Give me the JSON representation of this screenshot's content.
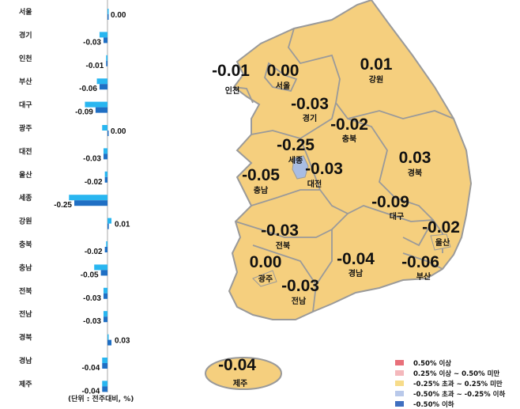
{
  "chart_data": [
    {
      "type": "bar",
      "orientation": "horizontal",
      "categories": [
        "서울",
        "경기",
        "인천",
        "부산",
        "대구",
        "광주",
        "대전",
        "울산",
        "세종",
        "강원",
        "충북",
        "충남",
        "전북",
        "전남",
        "경북",
        "경남",
        "제주"
      ],
      "series": [
        {
          "color": "#29b6f0",
          "values": [
            0.0,
            -0.06,
            -0.01,
            -0.08,
            -0.17,
            -0.04,
            -0.03,
            -0.02,
            -0.29,
            0.03,
            -0.01,
            -0.1,
            -0.03,
            -0.03,
            0.0,
            -0.04,
            -0.04
          ]
        },
        {
          "color": "#1f6fc4",
          "values": [
            0.0,
            -0.03,
            -0.01,
            -0.06,
            -0.09,
            0.0,
            -0.03,
            -0.02,
            -0.25,
            0.01,
            -0.02,
            -0.05,
            -0.03,
            -0.03,
            0.03,
            -0.04,
            -0.04
          ]
        }
      ],
      "value_labels": [
        "0.00",
        "-0.03",
        "-0.01",
        "-0.06",
        "-0.09",
        "0.00",
        "-0.03",
        "-0.02",
        "-0.25",
        "0.01",
        "-0.02",
        "-0.05",
        "-0.03",
        "-0.03",
        "0.03",
        "-0.04",
        "-0.04"
      ],
      "unit_note": "(단위 : 전주대비, %)"
    },
    {
      "type": "map",
      "regions": [
        {
          "name": "인천",
          "value": "-0.01"
        },
        {
          "name": "서울",
          "value": "0.00"
        },
        {
          "name": "강원",
          "value": "0.01"
        },
        {
          "name": "경기",
          "value": "-0.03"
        },
        {
          "name": "충북",
          "value": "-0.02"
        },
        {
          "name": "세종",
          "value": "-0.25"
        },
        {
          "name": "대전",
          "value": "-0.03"
        },
        {
          "name": "충남",
          "value": "-0.05"
        },
        {
          "name": "경북",
          "value": "0.03"
        },
        {
          "name": "대구",
          "value": "-0.09"
        },
        {
          "name": "울산",
          "value": "-0.02"
        },
        {
          "name": "전북",
          "value": "-0.03"
        },
        {
          "name": "경남",
          "value": "-0.04"
        },
        {
          "name": "부산",
          "value": "-0.06"
        },
        {
          "name": "광주",
          "value": "0.00"
        },
        {
          "name": "전남",
          "value": "-0.03"
        },
        {
          "name": "제주",
          "value": "-0.04"
        }
      ],
      "legend": [
        {
          "label": "0.50% 이상",
          "color": "#e8707a"
        },
        {
          "label": "0.25% 이상 ~ 0.50% 미만",
          "color": "#f4b8bc"
        },
        {
          "label": "-0.25% 초과 ~ 0.25% 미만",
          "color": "#f7dc8a"
        },
        {
          "label": "-0.50% 초과 ~ -0.25% 이하",
          "color": "#b9c9ea"
        },
        {
          "label": "-0.50% 이하",
          "color": "#3f6fc0"
        }
      ],
      "fill_color": "#f5cf7e",
      "sejong_color": "#a9bde3"
    }
  ]
}
